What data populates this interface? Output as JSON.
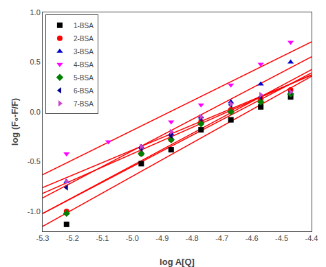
{
  "chart_data": {
    "type": "scatter",
    "xlabel": "log A[Q]",
    "ylabel": "log (F₀-F/F)",
    "xlim": [
      -5.3,
      -4.4
    ],
    "ylim": [
      -1.2,
      1.0
    ],
    "xticks": [
      -5.3,
      -5.2,
      -5.1,
      {
        "value": -5.0,
        "label": "-5.0"
      },
      -4.9,
      -4.8,
      -4.7,
      -4.6,
      -4.5,
      -4.4
    ],
    "yticks": [
      {
        "value": -1.0,
        "label": "-1.0"
      },
      -0.5,
      {
        "value": 0.0,
        "label": "0.0"
      },
      0.5,
      {
        "value": 1.0,
        "label": "1.0"
      }
    ],
    "grid": false,
    "legend": "upper left",
    "background_color": "#ffffff",
    "series": [
      {
        "name": "1-BSA",
        "color": "black",
        "marker": "square",
        "x": [
          -5.22,
          -4.97,
          -4.87,
          -4.77,
          -4.67,
          -4.57,
          -4.47
        ],
        "values": [
          -1.13,
          -0.52,
          -0.38,
          -0.18,
          -0.08,
          0.05,
          0.15
        ],
        "fit": {
          "x": [
            -5.3,
            -4.4
          ],
          "values": [
            -1.1513,
            0.3577
          ],
          "color": "#ff0000"
        }
      },
      {
        "name": "2-BSA",
        "color": "#ff0000",
        "marker": "circle",
        "x": [
          -5.22,
          -4.97,
          -4.87,
          -4.77,
          -4.67,
          -4.57,
          -4.47
        ],
        "values": [
          -1.0,
          -0.42,
          -0.28,
          -0.1,
          0.02,
          0.13,
          0.22
        ],
        "fit": {
          "x": [
            -5.3,
            -4.4
          ],
          "values": [
            -1.0213,
            0.4245
          ],
          "color": "#ff0000"
        }
      },
      {
        "name": "3-BSA",
        "color": "#0000cc",
        "marker": "triangle-up",
        "x": [
          -5.22,
          -4.97,
          -4.87,
          -4.77,
          -4.67,
          -4.57,
          -4.47
        ],
        "values": [
          -0.7,
          -0.35,
          -0.22,
          -0.05,
          0.1,
          0.28,
          0.5
        ],
        "fit": {
          "x": [
            -5.3,
            -4.4
          ],
          "values": [
            -0.8644,
            0.5541
          ],
          "color": "#ff0000"
        }
      },
      {
        "name": "4-BSA",
        "color": "#ff00ff",
        "marker": "triangle-down",
        "x": [
          -5.22,
          -5.08,
          -4.87,
          -4.77,
          -4.67,
          -4.57,
          -4.47
        ],
        "values": [
          -0.42,
          -0.3,
          -0.1,
          0.07,
          0.27,
          0.48,
          0.7
        ],
        "fit": {
          "x": [
            -5.3,
            -4.4
          ],
          "values": [
            -0.631,
            0.7038
          ],
          "color": "#ff0000"
        }
      },
      {
        "name": "5-BSA",
        "color": "#008000",
        "marker": "diamond",
        "x": [
          -5.22,
          -4.97,
          -4.87,
          -4.77,
          -4.67,
          -4.57,
          -4.47
        ],
        "values": [
          -1.02,
          -0.42,
          -0.28,
          -0.12,
          0.0,
          0.1,
          0.18
        ],
        "fit": {
          "x": [
            -5.3,
            -4.4
          ],
          "values": [
            -1.0218,
            0.3921
          ],
          "color": "#ff0000"
        }
      },
      {
        "name": "6-BSA",
        "color": "#00008b",
        "marker": "triangle-left",
        "x": [
          -5.22,
          -4.97,
          -4.87,
          -4.77,
          -4.67,
          -4.57,
          -4.47
        ],
        "values": [
          -0.76,
          -0.37,
          -0.24,
          -0.07,
          0.07,
          0.15,
          0.2
        ],
        "fit": {
          "x": [
            -5.3,
            -4.4
          ],
          "values": [
            -0.8187,
            0.3723
          ],
          "color": "#ff0000"
        }
      },
      {
        "name": "7-BSA",
        "color": "#cc44cc",
        "marker": "triangle-right",
        "x": [
          -5.22,
          -4.97,
          -4.87,
          -4.77,
          -4.67,
          -4.57,
          -4.47
        ],
        "values": [
          -0.7,
          -0.35,
          -0.2,
          -0.05,
          0.08,
          0.17,
          0.2
        ],
        "fit": {
          "x": [
            -5.3,
            -4.4
          ],
          "values": [
            -0.76,
            0.3701
          ],
          "color": "#ff0000"
        }
      }
    ]
  }
}
